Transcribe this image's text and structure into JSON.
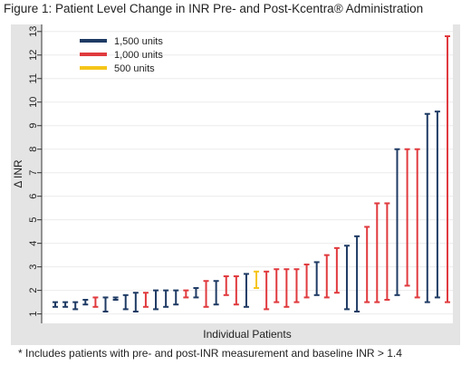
{
  "figure": {
    "title": "Figure 1: Patient Level Change in INR Pre- and Post-Kcentra® Administration",
    "footnote": "* Includes patients with pre- and post-INR measurement and baseline INR > 1.4"
  },
  "chart_data": {
    "type": "range-bar",
    "xlabel": "Individual Patients",
    "ylabel": "Δ INR",
    "ylim": [
      0.6,
      13.3
    ],
    "yticks": [
      1,
      2,
      3,
      4,
      5,
      6,
      7,
      8,
      9,
      10,
      11,
      12,
      13
    ],
    "ytick_labels": [
      "1",
      "2",
      "3",
      "4",
      "5",
      "6",
      "7",
      "8",
      "9",
      "10",
      "11",
      "12",
      "13"
    ],
    "grid": true,
    "legend_position": "top-left",
    "legend": [
      {
        "key": "1500",
        "label": "1,500 units",
        "color": "#1f3b64"
      },
      {
        "key": "1000",
        "label": "1,000 units",
        "color": "#e03a3e"
      },
      {
        "key": "500",
        "label": "500 units",
        "color": "#f5c518"
      }
    ],
    "series_colors": {
      "1500": "#1f3b64",
      "1000": "#e03a3e",
      "500": "#f5c518"
    },
    "patients": [
      {
        "dose": "1500",
        "low": 1.3,
        "high": 1.5
      },
      {
        "dose": "1500",
        "low": 1.3,
        "high": 1.5
      },
      {
        "dose": "1500",
        "low": 1.2,
        "high": 1.5
      },
      {
        "dose": "1500",
        "low": 1.4,
        "high": 1.6
      },
      {
        "dose": "1000",
        "low": 1.3,
        "high": 1.7
      },
      {
        "dose": "1500",
        "low": 1.1,
        "high": 1.7
      },
      {
        "dose": "1500",
        "low": 1.6,
        "high": 1.7
      },
      {
        "dose": "1500",
        "low": 1.2,
        "high": 1.8
      },
      {
        "dose": "1500",
        "low": 1.1,
        "high": 1.9
      },
      {
        "dose": "1000",
        "low": 1.3,
        "high": 1.9
      },
      {
        "dose": "1500",
        "low": 1.2,
        "high": 2.0
      },
      {
        "dose": "1500",
        "low": 1.3,
        "high": 2.0
      },
      {
        "dose": "1500",
        "low": 1.4,
        "high": 2.0
      },
      {
        "dose": "1000",
        "low": 1.7,
        "high": 2.0
      },
      {
        "dose": "1500",
        "low": 1.7,
        "high": 2.1
      },
      {
        "dose": "1000",
        "low": 1.3,
        "high": 2.4
      },
      {
        "dose": "1500",
        "low": 1.4,
        "high": 2.4
      },
      {
        "dose": "1000",
        "low": 1.8,
        "high": 2.6
      },
      {
        "dose": "1000",
        "low": 1.4,
        "high": 2.6
      },
      {
        "dose": "1500",
        "low": 1.3,
        "high": 2.7
      },
      {
        "dose": "500",
        "low": 2.1,
        "high": 2.8
      },
      {
        "dose": "1000",
        "low": 1.2,
        "high": 2.8
      },
      {
        "dose": "1000",
        "low": 1.5,
        "high": 2.9
      },
      {
        "dose": "1000",
        "low": 1.3,
        "high": 2.9
      },
      {
        "dose": "1000",
        "low": 1.5,
        "high": 2.9
      },
      {
        "dose": "1000",
        "low": 1.7,
        "high": 3.1
      },
      {
        "dose": "1500",
        "low": 1.8,
        "high": 3.2
      },
      {
        "dose": "1000",
        "low": 1.7,
        "high": 3.5
      },
      {
        "dose": "1000",
        "low": 1.9,
        "high": 3.8
      },
      {
        "dose": "1500",
        "low": 1.2,
        "high": 3.9
      },
      {
        "dose": "1500",
        "low": 1.1,
        "high": 4.3
      },
      {
        "dose": "1000",
        "low": 1.5,
        "high": 4.7
      },
      {
        "dose": "1000",
        "low": 1.5,
        "high": 5.7
      },
      {
        "dose": "1000",
        "low": 1.6,
        "high": 5.7
      },
      {
        "dose": "1500",
        "low": 1.8,
        "high": 8.0
      },
      {
        "dose": "1000",
        "low": 2.2,
        "high": 8.0
      },
      {
        "dose": "1000",
        "low": 1.7,
        "high": 8.0
      },
      {
        "dose": "1500",
        "low": 1.5,
        "high": 9.5
      },
      {
        "dose": "1500",
        "low": 1.7,
        "high": 9.6
      },
      {
        "dose": "1000",
        "low": 1.5,
        "high": 12.8
      }
    ]
  }
}
